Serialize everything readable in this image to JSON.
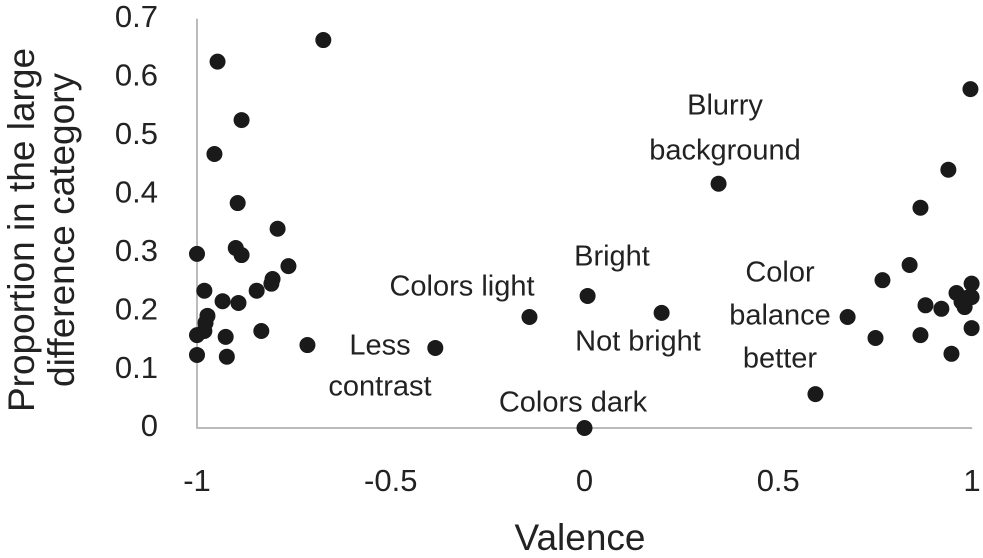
{
  "chart_data": {
    "type": "scatter",
    "x_label": "Valence",
    "y_label": [
      "Proportion in the large",
      "difference category"
    ],
    "xlim": [
      -1,
      1
    ],
    "ylim": [
      0,
      0.7
    ],
    "xticks": [
      -1,
      -0.5,
      0,
      0.5,
      1
    ],
    "yticks": [
      0,
      0.1,
      0.2,
      0.3,
      0.4,
      0.5,
      0.6,
      0.7
    ],
    "color": "#1a1a1a",
    "x": [
      -0.674,
      -0.947,
      -0.885,
      -0.955,
      -0.895,
      -0.792,
      -1.0,
      -0.9,
      -0.885,
      -0.764,
      -0.805,
      -0.808,
      -0.981,
      -0.846,
      -0.934,
      -0.893,
      -0.973,
      -0.978,
      -1.0,
      -0.926,
      -0.981,
      -0.834,
      -0.715,
      -1.0,
      -0.923,
      -0.385,
      -0.142,
      0.008,
      0.199,
      0,
      0.346,
      0.596,
      0.679,
      0.751,
      0.769,
      0.839,
      0.867,
      0.939,
      0.996,
      0.867,
      0.88,
      0.921,
      0.947,
      0.96,
      0.973,
      0.981,
      0.988,
      0.999,
      0.999,
      0.999
    ],
    "values": [
      0.664,
      0.627,
      0.527,
      0.469,
      0.385,
      0.341,
      0.298,
      0.308,
      0.296,
      0.277,
      0.255,
      0.247,
      0.235,
      0.235,
      0.217,
      0.214,
      0.192,
      0.18,
      0.159,
      0.156,
      0.166,
      0.166,
      0.142,
      0.125,
      0.122,
      0.137,
      0.19,
      0.226,
      0.197,
      0,
      0.418,
      0.058,
      0.19,
      0.154,
      0.253,
      0.279,
      0.377,
      0.442,
      0.58,
      0.159,
      0.21,
      0.204,
      0.127,
      0.231,
      0.216,
      0.207,
      0.223,
      0.247,
      0.224,
      0.171
    ],
    "annotations": [
      {
        "lines": [
          "Blurry",
          "background"
        ]
      },
      {
        "lines": [
          "Colors  light"
        ]
      },
      {
        "lines": [
          "Bright"
        ]
      },
      {
        "lines": [
          "Less",
          "contrast"
        ]
      },
      {
        "lines": [
          "Not bright"
        ]
      },
      {
        "lines": [
          "Color",
          "balance",
          "better"
        ]
      },
      {
        "lines": [
          "Colors dark"
        ]
      }
    ]
  }
}
